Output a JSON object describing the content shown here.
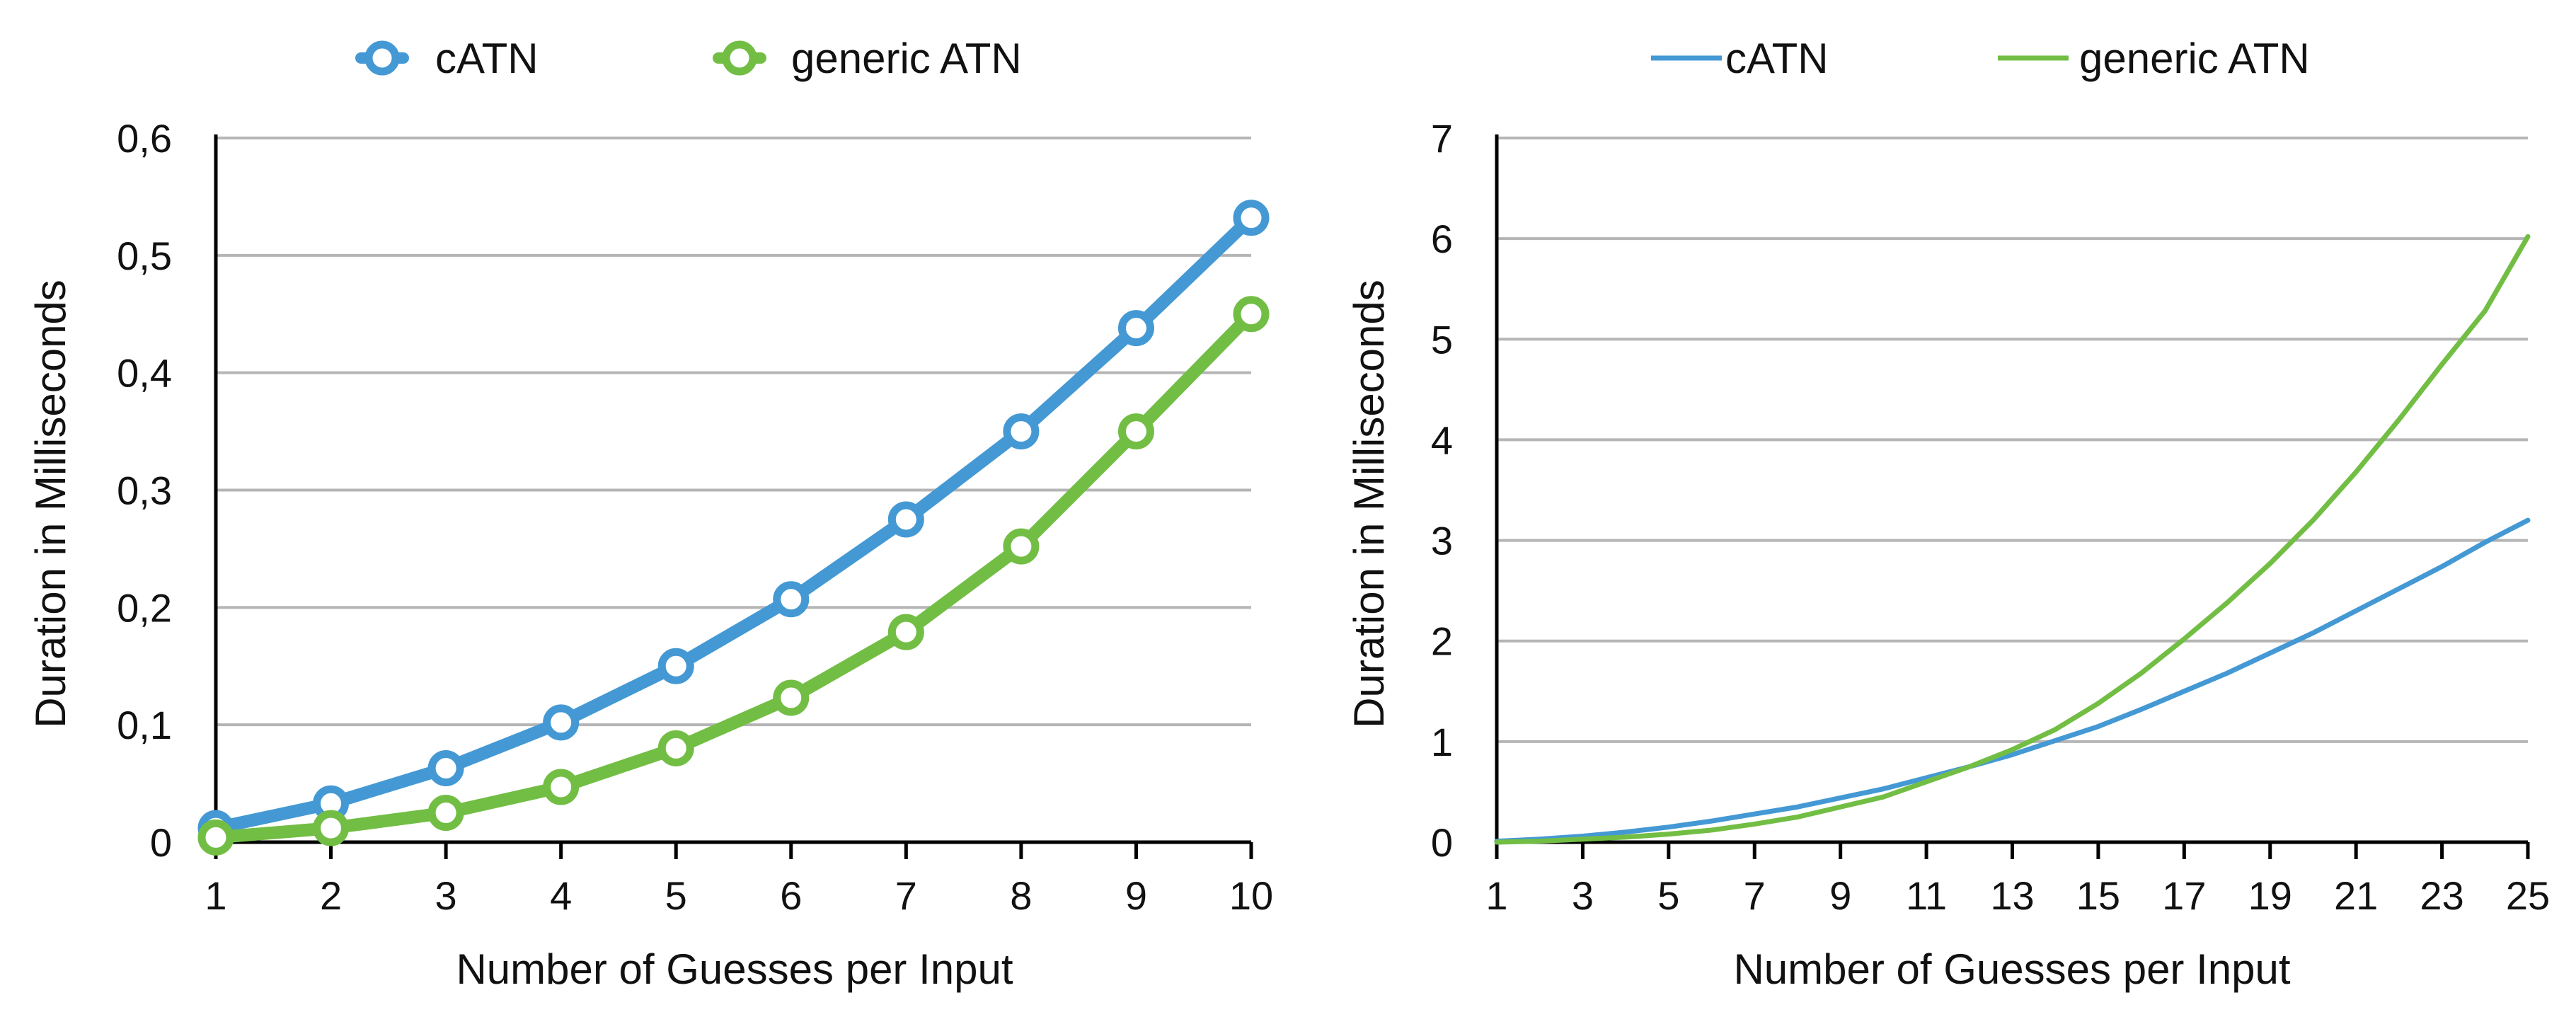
{
  "chart_data": [
    {
      "type": "line",
      "title": "",
      "xlabel": "Number of Guesses per Input",
      "ylabel": "Duration in Milliseconds",
      "x": [
        1,
        2,
        3,
        4,
        5,
        6,
        7,
        8,
        9,
        10
      ],
      "xticks": [
        "1",
        "2",
        "3",
        "4",
        "5",
        "6",
        "7",
        "8",
        "9",
        "10"
      ],
      "xlim": [
        1,
        10
      ],
      "ylim": [
        0,
        0.6
      ],
      "yticks": [
        0,
        0.1,
        0.2,
        0.3,
        0.4,
        0.5,
        0.6
      ],
      "ytick_labels": [
        "0",
        "0,1",
        "0,2",
        "0,3",
        "0,4",
        "0,5",
        "0,6"
      ],
      "grid": true,
      "markers": true,
      "legend_position": "top",
      "series": [
        {
          "name": "cATN",
          "color": "#4499d4",
          "values": [
            0.012,
            0.033,
            0.063,
            0.102,
            0.15,
            0.207,
            0.275,
            0.35,
            0.438,
            0.532
          ]
        },
        {
          "name": "generic ATN",
          "color": "#72be44",
          "values": [
            0.004,
            0.012,
            0.025,
            0.047,
            0.08,
            0.123,
            0.179,
            0.252,
            0.35,
            0.45
          ]
        }
      ]
    },
    {
      "type": "line",
      "title": "",
      "xlabel": "Number of Guesses per Input",
      "ylabel": "Duration in Milliseconds",
      "x": [
        1,
        2,
        3,
        4,
        5,
        6,
        7,
        8,
        9,
        10,
        11,
        12,
        13,
        14,
        15,
        16,
        17,
        18,
        19,
        20,
        21,
        22,
        23,
        24,
        25
      ],
      "xticks": [
        "1",
        "3",
        "5",
        "7",
        "9",
        "11",
        "13",
        "15",
        "17",
        "19",
        "21",
        "23",
        "25"
      ],
      "xlim": [
        1,
        25
      ],
      "ylim": [
        0,
        7
      ],
      "yticks": [
        0,
        1,
        2,
        3,
        4,
        5,
        6,
        7
      ],
      "ytick_labels": [
        "0",
        "1",
        "2",
        "3",
        "4",
        "5",
        "6",
        "7"
      ],
      "grid": true,
      "markers": false,
      "legend_position": "top",
      "series": [
        {
          "name": "cATN",
          "color": "#4499d4",
          "values": [
            0.01,
            0.03,
            0.06,
            0.1,
            0.15,
            0.21,
            0.28,
            0.35,
            0.44,
            0.53,
            0.64,
            0.75,
            0.87,
            1.01,
            1.15,
            1.32,
            1.5,
            1.68,
            1.88,
            2.08,
            2.3,
            2.52,
            2.74,
            2.98,
            3.2
          ]
        },
        {
          "name": "generic ATN",
          "color": "#72be44",
          "values": [
            0.0,
            0.01,
            0.03,
            0.05,
            0.08,
            0.12,
            0.18,
            0.25,
            0.35,
            0.45,
            0.6,
            0.75,
            0.92,
            1.12,
            1.38,
            1.68,
            2.02,
            2.38,
            2.77,
            3.2,
            3.68,
            4.2,
            4.75,
            5.28,
            6.02
          ]
        }
      ]
    }
  ]
}
